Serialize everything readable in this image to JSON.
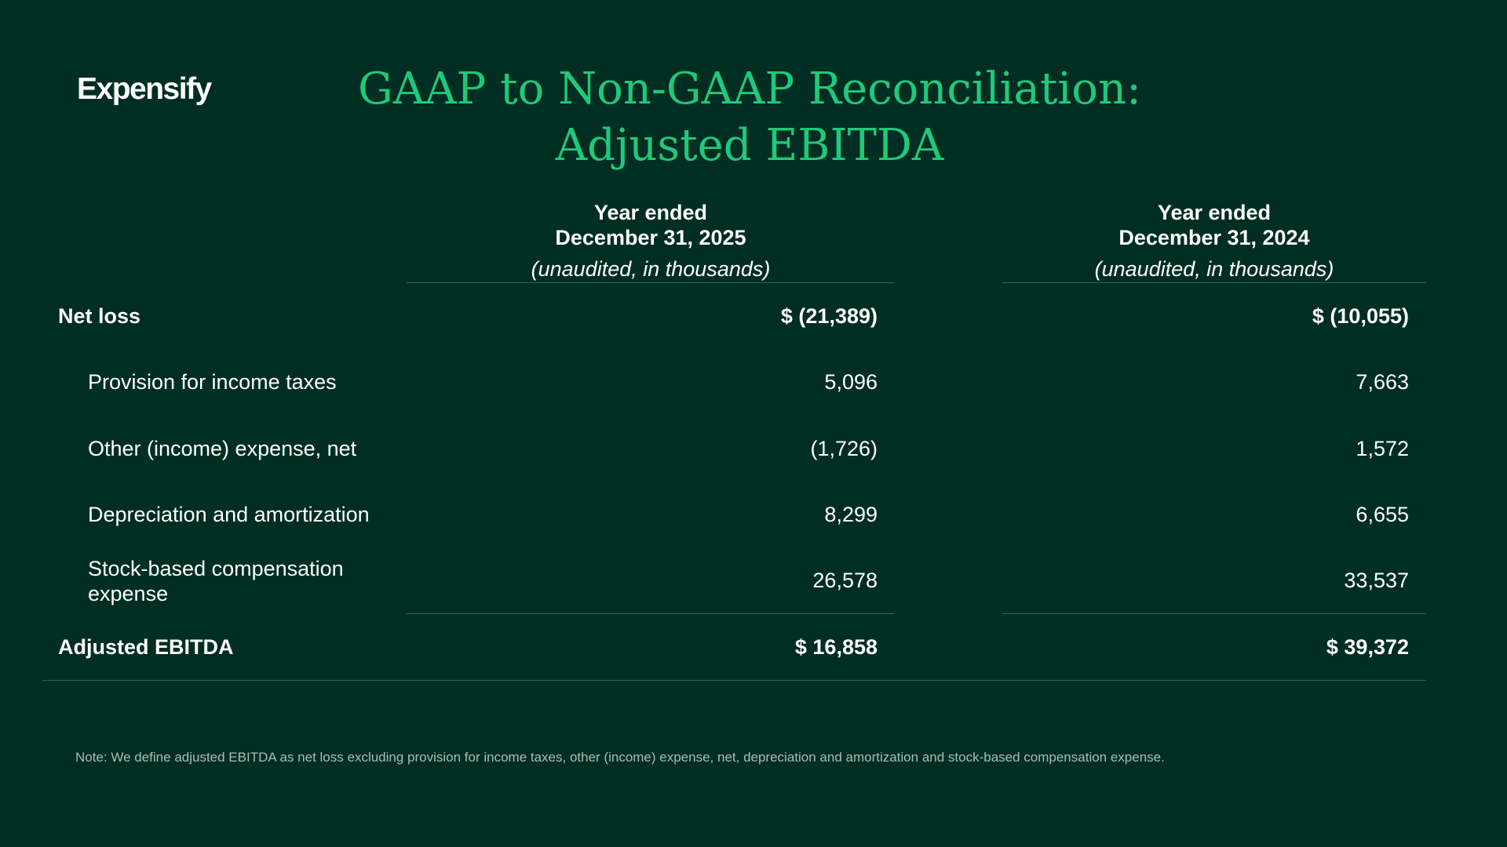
{
  "brand": {
    "logo_text": "Expensify"
  },
  "header": {
    "title_line1": "GAAP to Non-GAAP Reconciliation:",
    "title_line2": "Adjusted EBITDA"
  },
  "columns": [
    {
      "line1": "Year ended",
      "line2": "December 31, 2025",
      "note": "(unaudited, in thousands)"
    },
    {
      "line1": "Year ended",
      "line2": "December 31, 2024",
      "note": "(unaudited, in thousands)"
    }
  ],
  "rows": [
    {
      "label": "Net loss",
      "v2025": "$ (21,389)",
      "v2024": "$ (10,055)"
    },
    {
      "label": "Provision for income taxes",
      "v2025": "5,096",
      "v2024": "7,663"
    },
    {
      "label": "Other (income) expense, net",
      "v2025": "(1,726)",
      "v2024": "1,572"
    },
    {
      "label": "Depreciation and amortization",
      "v2025": "8,299",
      "v2024": "6,655"
    },
    {
      "label_line1": "Stock-based compensation",
      "label_line2": "expense",
      "v2025": "26,578",
      "v2024": "33,537"
    },
    {
      "label": "Adjusted EBITDA",
      "v2025": "$ 16,858",
      "v2024": "$ 39,372"
    }
  ],
  "footnote": "Note: We define adjusted EBITDA as net loss excluding provision for income taxes, other (income) expense, net, depreciation and amortization and stock-based compensation expense.",
  "colors": {
    "background": "#002e22",
    "accent": "#20c97a",
    "rule": "#1f6b4c"
  }
}
